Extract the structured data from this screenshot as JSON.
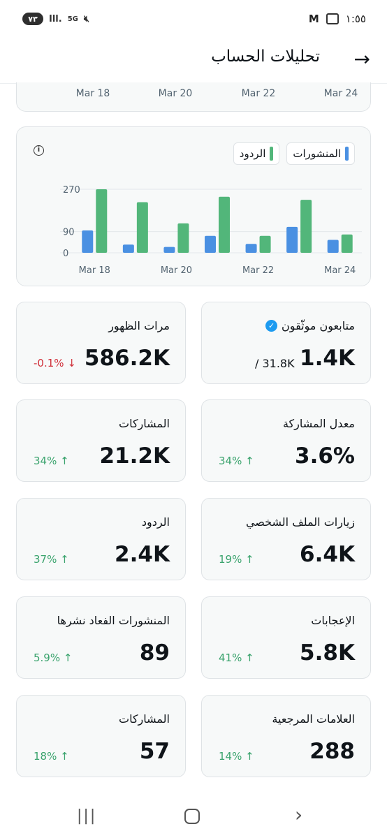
{
  "status_bar": {
    "battery": "٧٣",
    "network": "5G",
    "time": "١:٥٥"
  },
  "header": {
    "title": "تحليلات الحساب",
    "back_icon": "arrow-right-icon"
  },
  "top_chart": {
    "x_labels": [
      "Mar 18",
      "Mar 20",
      "Mar 22",
      "Mar 24"
    ]
  },
  "chart_data": {
    "type": "bar",
    "categories": [
      "Mar 18",
      "Mar 19",
      "Mar 20",
      "Mar 21",
      "Mar 22",
      "Mar 23",
      "Mar 24"
    ],
    "x_tick_labels": [
      "Mar 18",
      "Mar 20",
      "Mar 22",
      "Mar 24"
    ],
    "y_tick_labels": [
      "270",
      "90",
      "0"
    ],
    "ylim": [
      0,
      280
    ],
    "grid": true,
    "legend_position": "top-right",
    "series": [
      {
        "name": "المنشورات",
        "color": "#4a90e2",
        "values": [
          95,
          35,
          25,
          72,
          38,
          110,
          55
        ]
      },
      {
        "name": "الردود",
        "color": "#52b67a",
        "values": [
          270,
          215,
          125,
          238,
          72,
          225,
          78
        ]
      }
    ]
  },
  "stats": [
    {
      "id": "verified-followers",
      "label": "متابعون موثّقون",
      "value": "1.4K",
      "total": "/ 31.8K",
      "verified": true
    },
    {
      "id": "impressions",
      "label": "مرات الظهور",
      "value": "586.2K",
      "change": "-0.1%",
      "direction": "down"
    },
    {
      "id": "engagement-rate",
      "label": "معدل المشاركة",
      "value": "3.6%",
      "change": "34%",
      "direction": "up"
    },
    {
      "id": "engagements",
      "label": "المشاركات",
      "value": "21.2K",
      "change": "34%",
      "direction": "up"
    },
    {
      "id": "profile-visits",
      "label": "زيارات الملف الشخصي",
      "value": "6.4K",
      "change": "19%",
      "direction": "up"
    },
    {
      "id": "replies",
      "label": "الردود",
      "value": "2.4K",
      "change": "37%",
      "direction": "up"
    },
    {
      "id": "likes",
      "label": "الإعجابات",
      "value": "5.8K",
      "change": "41%",
      "direction": "up"
    },
    {
      "id": "reposts",
      "label": "المنشورات الفعاد نشرها",
      "value": "89",
      "change": "5.9%",
      "direction": "up"
    },
    {
      "id": "bookmarks",
      "label": "العلامات المرجعية",
      "value": "288",
      "change": "14%",
      "direction": "up"
    },
    {
      "id": "shares",
      "label": "المشاركات",
      "value": "57",
      "change": "18%",
      "direction": "up"
    }
  ],
  "colors": {
    "up": "#3aa36d",
    "down": "#d0303a",
    "card_bg": "#f7f9f9",
    "verified": "#1d9bf0"
  }
}
